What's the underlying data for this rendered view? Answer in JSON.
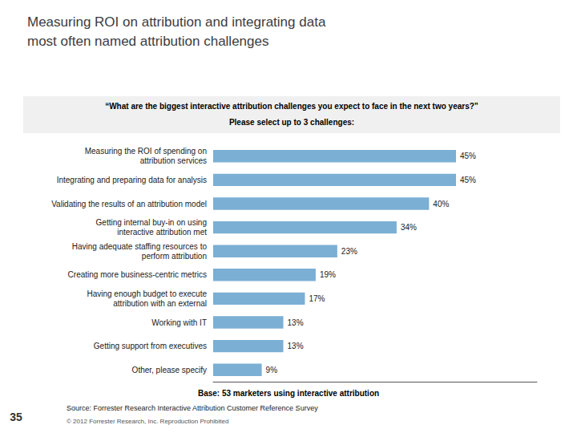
{
  "chart_data": {
    "type": "bar",
    "orientation": "horizontal",
    "title": "Measuring ROI on attribution and integrating data\nmost often named attribution challenges",
    "annotations": [
      "“What are the biggest interactive attribution challenges you expect to face in the next two years?”",
      "Please select up to 3 challenges:",
      "Base: 53 marketers using interactive attribution",
      "Source: Forrester Research Interactive Attribution Customer Reference Survey",
      "© 2012 Forrester Research, Inc. Reproduction Prohibited",
      "35"
    ],
    "categories": [
      "Measuring the ROI of spending on\nattribution services",
      "Integrating and preparing data for analysis",
      "Validating the results of an attribution model",
      "Getting internal buy-in on using\ninteractive attribution met",
      "Having adequate staffing resources to\nperform attribution",
      "Creating more business-centric metrics",
      "Having enough budget to execute\nattribution with an external",
      "Working with IT",
      "Getting support from executives",
      "Other, please specify"
    ],
    "values": [
      45,
      45,
      40,
      34,
      23,
      19,
      17,
      13,
      13,
      9
    ],
    "value_labels": [
      "45%",
      "45%",
      "40%",
      "34%",
      "23%",
      "19%",
      "17%",
      "13%",
      "13%",
      "9%"
    ],
    "data_labels": true,
    "color": "#7bafd4",
    "xlim": [
      0,
      60
    ],
    "grid": false,
    "tick_labels": "y"
  }
}
